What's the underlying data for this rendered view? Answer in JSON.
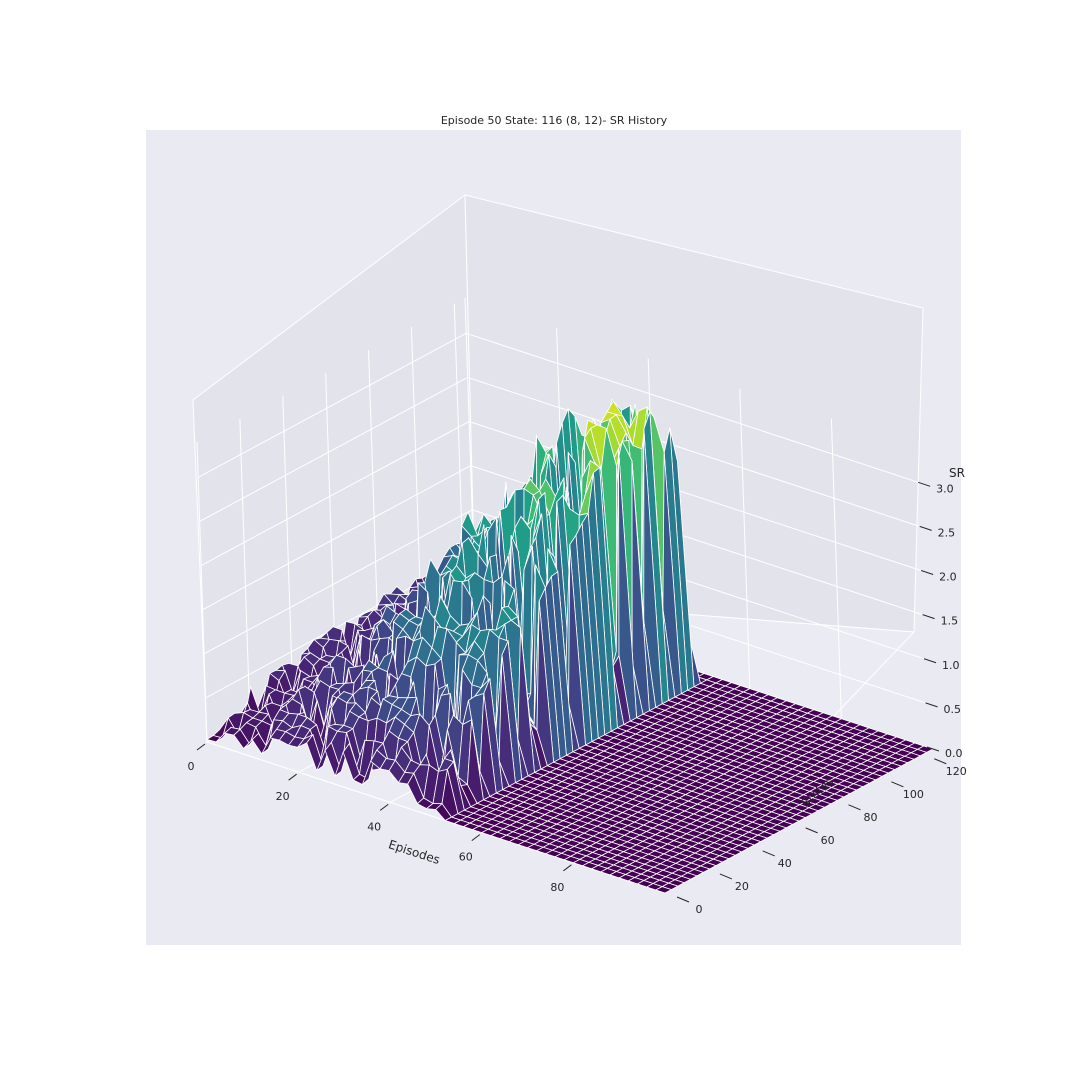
{
  "chart_data": {
    "type": "surface",
    "title": "Episode 50 State: 116 (8, 12)- SR History",
    "xlabel": "Episodes",
    "ylabel": "States",
    "zlabel": "SR",
    "xlim": [
      0,
      100
    ],
    "ylim": [
      0,
      125
    ],
    "zlim": [
      0,
      3.4
    ],
    "xticks": [
      "0",
      "20",
      "40",
      "60",
      "80"
    ],
    "yticks": [
      "0",
      "20",
      "40",
      "60",
      "80",
      "100",
      "120"
    ],
    "zticks": [
      "0.0",
      "0.5",
      "1.0",
      "1.5",
      "2.0",
      "2.5",
      "3.0"
    ],
    "colormap": "viridis",
    "grid": true,
    "nonzero_region": {
      "episodes": [
        0,
        50
      ],
      "states": [
        0,
        121
      ]
    },
    "surface_profile": {
      "states": [
        0,
        10,
        20,
        30,
        40,
        50,
        60,
        70,
        80,
        90,
        100,
        110,
        121
      ],
      "max_sr_by_episode_band": [
        {
          "episodes": [
            0,
            10
          ],
          "values": [
            0.2,
            0.3,
            0.35,
            0.4,
            0.45,
            0.5,
            0.55,
            0.55,
            0.6,
            0.6,
            0.6,
            0.6,
            0.6
          ]
        },
        {
          "episodes": [
            10,
            20
          ],
          "values": [
            0.3,
            0.5,
            0.6,
            0.7,
            0.8,
            0.9,
            1.0,
            1.1,
            1.2,
            1.3,
            1.3,
            1.3,
            1.3
          ]
        },
        {
          "episodes": [
            20,
            30
          ],
          "values": [
            0.4,
            0.6,
            0.8,
            1.0,
            1.2,
            1.5,
            1.7,
            1.9,
            2.0,
            2.1,
            2.2,
            2.2,
            2.2
          ]
        },
        {
          "episodes": [
            30,
            40
          ],
          "values": [
            0.4,
            0.7,
            1.0,
            1.4,
            1.8,
            2.0,
            2.3,
            2.5,
            2.7,
            2.9,
            3.0,
            3.0,
            3.0
          ]
        },
        {
          "episodes": [
            40,
            50
          ],
          "values": [
            0.3,
            0.6,
            1.0,
            1.4,
            1.8,
            2.1,
            2.4,
            2.7,
            3.0,
            3.2,
            3.3,
            3.2,
            2.5
          ]
        }
      ]
    }
  }
}
